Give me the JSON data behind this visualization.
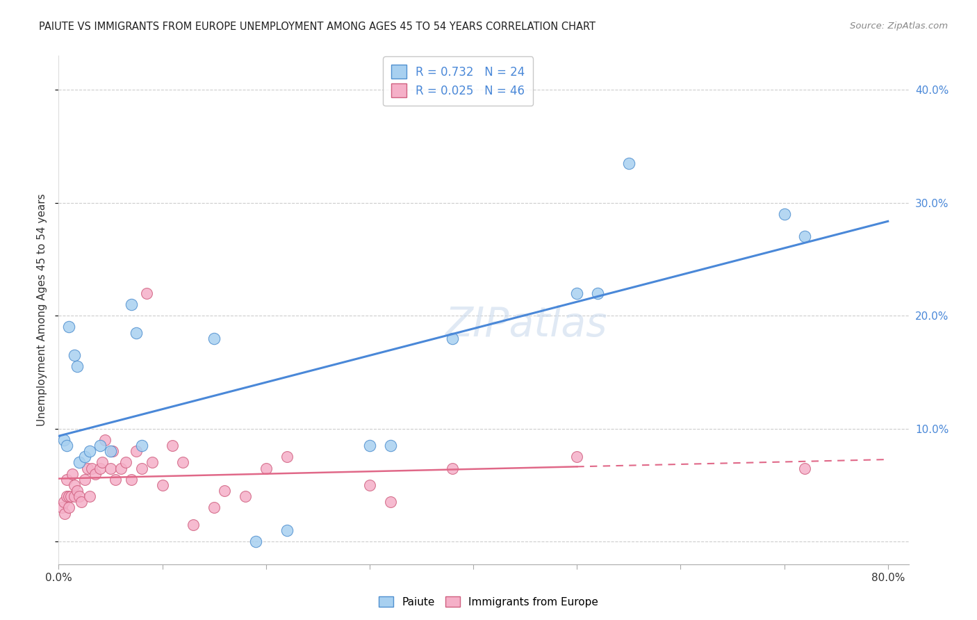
{
  "title": "PAIUTE VS IMMIGRANTS FROM EUROPE UNEMPLOYMENT AMONG AGES 45 TO 54 YEARS CORRELATION CHART",
  "source": "Source: ZipAtlas.com",
  "ylabel": "Unemployment Among Ages 45 to 54 years",
  "xlim": [
    0.0,
    0.82
  ],
  "ylim": [
    -0.02,
    0.43
  ],
  "yticks": [
    0.0,
    0.1,
    0.2,
    0.3,
    0.4
  ],
  "xticks": [
    0.0,
    0.1,
    0.2,
    0.3,
    0.4,
    0.5,
    0.6,
    0.7,
    0.8
  ],
  "paiute_color": "#a8d0f0",
  "europe_color": "#f5b0c8",
  "paiute_edge_color": "#5090d0",
  "europe_edge_color": "#d06080",
  "paiute_line_color": "#4a88d8",
  "europe_line_color": "#e06888",
  "tick_label_color": "#4a88d8",
  "legend_r_paiute": "R = 0.732",
  "legend_n_paiute": "N = 24",
  "legend_r_europe": "R = 0.025",
  "legend_n_europe": "N = 46",
  "watermark": "ZIPatlas",
  "paiute_x": [
    0.005,
    0.008,
    0.01,
    0.015,
    0.018,
    0.02,
    0.025,
    0.03,
    0.04,
    0.05,
    0.07,
    0.075,
    0.08,
    0.15,
    0.19,
    0.22,
    0.3,
    0.32,
    0.38,
    0.5,
    0.52,
    0.55,
    0.7,
    0.72
  ],
  "paiute_y": [
    0.09,
    0.085,
    0.19,
    0.165,
    0.155,
    0.07,
    0.075,
    0.08,
    0.085,
    0.08,
    0.21,
    0.185,
    0.085,
    0.18,
    0.0,
    0.01,
    0.085,
    0.085,
    0.18,
    0.22,
    0.22,
    0.335,
    0.29,
    0.27
  ],
  "europe_x": [
    0.003,
    0.005,
    0.006,
    0.008,
    0.008,
    0.01,
    0.01,
    0.012,
    0.013,
    0.015,
    0.015,
    0.018,
    0.02,
    0.022,
    0.025,
    0.028,
    0.03,
    0.032,
    0.035,
    0.04,
    0.042,
    0.045,
    0.05,
    0.052,
    0.055,
    0.06,
    0.065,
    0.07,
    0.075,
    0.08,
    0.085,
    0.09,
    0.1,
    0.11,
    0.12,
    0.13,
    0.15,
    0.16,
    0.18,
    0.2,
    0.22,
    0.3,
    0.32,
    0.38,
    0.5,
    0.72
  ],
  "europe_y": [
    0.03,
    0.035,
    0.025,
    0.04,
    0.055,
    0.03,
    0.04,
    0.04,
    0.06,
    0.05,
    0.04,
    0.045,
    0.04,
    0.035,
    0.055,
    0.065,
    0.04,
    0.065,
    0.06,
    0.065,
    0.07,
    0.09,
    0.065,
    0.08,
    0.055,
    0.065,
    0.07,
    0.055,
    0.08,
    0.065,
    0.22,
    0.07,
    0.05,
    0.085,
    0.07,
    0.015,
    0.03,
    0.045,
    0.04,
    0.065,
    0.075,
    0.05,
    0.035,
    0.065,
    0.075,
    0.065
  ]
}
